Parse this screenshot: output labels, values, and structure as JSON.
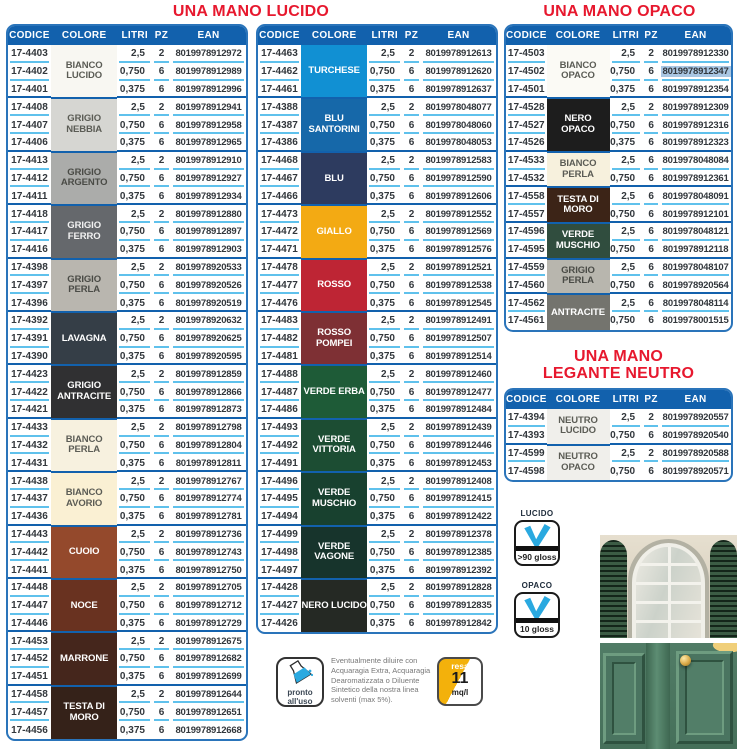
{
  "titles": {
    "lucido": "UNA MANO LUCIDO",
    "opaco": "UNA MANO OPACO",
    "legante_line1": "UNA MANO",
    "legante_line2": "LEGANTE NEUTRO"
  },
  "columns": [
    "CODICE",
    "COLORE",
    "LITRI",
    "PZ",
    "EAN"
  ],
  "colors": {
    "header_blue": "#1261ad",
    "line_cyan": "#5fc1ec",
    "title_red": "#e7182e",
    "ean_highlight": "#a9c6e2",
    "logo_blue": "#2aa9e0",
    "resa_yellow": "#f3b10b"
  },
  "tables": {
    "lucido_a": {
      "groups": [
        {
          "name": "BIANCO LUCIDO",
          "swatch": "#f8f7f2",
          "text": "#5b5c55",
          "rows": [
            [
              "17-4403",
              "2,5",
              "2",
              "8019978912972"
            ],
            [
              "17-4402",
              "0,750",
              "6",
              "8019978912989"
            ],
            [
              "17-4401",
              "0,375",
              "6",
              "8019978912996"
            ]
          ]
        },
        {
          "name": "GRIGIO NEBBIA",
          "swatch": "#d6d6d2",
          "text": "#5b5c55",
          "rows": [
            [
              "17-4408",
              "2,5",
              "2",
              "8019978912941"
            ],
            [
              "17-4407",
              "0,750",
              "6",
              "8019978912958"
            ],
            [
              "17-4406",
              "0,375",
              "6",
              "8019978912965"
            ]
          ]
        },
        {
          "name": "GRIGIO ARGENTO",
          "swatch": "#abacaa",
          "text": "#4a4b46",
          "rows": [
            [
              "17-4413",
              "2,5",
              "2",
              "8019978912910"
            ],
            [
              "17-4412",
              "0,750",
              "6",
              "8019978912927"
            ],
            [
              "17-4411",
              "0,375",
              "6",
              "8019978912934"
            ]
          ]
        },
        {
          "name": "GRIGIO FERRO",
          "swatch": "#65686c",
          "text": "#f2f2f2",
          "rows": [
            [
              "17-4418",
              "2,5",
              "2",
              "8019978912880"
            ],
            [
              "17-4417",
              "0,750",
              "6",
              "8019978912897"
            ],
            [
              "17-4416",
              "0,375",
              "6",
              "8019978912903"
            ]
          ]
        },
        {
          "name": "GRIGIO PERLA",
          "swatch": "#b9b6af",
          "text": "#4a4b46",
          "rows": [
            [
              "17-4398",
              "2,5",
              "2",
              "8019978920533"
            ],
            [
              "17-4397",
              "0,750",
              "6",
              "8019978920526"
            ],
            [
              "17-4396",
              "0,375",
              "6",
              "8019978920519"
            ]
          ]
        },
        {
          "name": "LAVAGNA",
          "swatch": "#353e47",
          "text": "#ffffff",
          "rows": [
            [
              "17-4392",
              "2,5",
              "2",
              "8019978920632"
            ],
            [
              "17-4391",
              "0,750",
              "6",
              "8019978920625"
            ],
            [
              "17-4390",
              "0,375",
              "6",
              "8019978920595"
            ]
          ]
        },
        {
          "name": "GRIGIO ANTRACITE",
          "swatch": "#303032",
          "text": "#ffffff",
          "rows": [
            [
              "17-4423",
              "2,5",
              "2",
              "8019978912859"
            ],
            [
              "17-4422",
              "0,750",
              "6",
              "8019978912866"
            ],
            [
              "17-4421",
              "0,375",
              "6",
              "8019978912873"
            ]
          ]
        },
        {
          "name": "BIANCO PERLA",
          "swatch": "#f7f1df",
          "text": "#5b5c55",
          "rows": [
            [
              "17-4433",
              "2,5",
              "2",
              "8019978912798"
            ],
            [
              "17-4432",
              "0,750",
              "6",
              "8019978912804"
            ],
            [
              "17-4431",
              "0,375",
              "6",
              "8019978912811"
            ]
          ]
        },
        {
          "name": "BIANCO AVORIO",
          "swatch": "#faf0d3",
          "text": "#5b5c55",
          "rows": [
            [
              "17-4438",
              "2,5",
              "2",
              "8019978912767"
            ],
            [
              "17-4437",
              "0,750",
              "6",
              "8019978912774"
            ],
            [
              "17-4436",
              "0,375",
              "6",
              "8019978912781"
            ]
          ]
        },
        {
          "name": "CUOIO",
          "swatch": "#94492c",
          "text": "#ffffff",
          "rows": [
            [
              "17-4443",
              "2,5",
              "2",
              "8019978912736"
            ],
            [
              "17-4442",
              "0,750",
              "6",
              "8019978912743"
            ],
            [
              "17-4441",
              "0,375",
              "6",
              "8019978912750"
            ]
          ]
        },
        {
          "name": "NOCE",
          "swatch": "#693220",
          "text": "#ffffff",
          "rows": [
            [
              "17-4448",
              "2,5",
              "2",
              "8019978912705"
            ],
            [
              "17-4447",
              "0,750",
              "6",
              "8019978912712"
            ],
            [
              "17-4446",
              "0,375",
              "6",
              "8019978912729"
            ]
          ]
        },
        {
          "name": "MARRONE",
          "swatch": "#45261c",
          "text": "#ffffff",
          "rows": [
            [
              "17-4453",
              "2,5",
              "2",
              "8019978912675"
            ],
            [
              "17-4452",
              "0,750",
              "6",
              "8019978912682"
            ],
            [
              "17-4451",
              "0,375",
              "6",
              "8019978912699"
            ]
          ]
        },
        {
          "name": "TESTA DI MORO",
          "swatch": "#352219",
          "text": "#ffffff",
          "rows": [
            [
              "17-4458",
              "2,5",
              "2",
              "8019978912644"
            ],
            [
              "17-4457",
              "0,750",
              "6",
              "8019978912651"
            ],
            [
              "17-4456",
              "0,375",
              "6",
              "8019978912668"
            ]
          ]
        }
      ]
    },
    "lucido_b": {
      "groups": [
        {
          "name": "TURCHESE",
          "swatch": "#1190d3",
          "text": "#ffffff",
          "rows": [
            [
              "17-4463",
              "2,5",
              "2",
              "8019978912613"
            ],
            [
              "17-4462",
              "0,750",
              "6",
              "8019978912620"
            ],
            [
              "17-4461",
              "0,375",
              "6",
              "8019978912637"
            ]
          ]
        },
        {
          "name": "BLU SANTORINI",
          "swatch": "#1668a9",
          "text": "#ffffff",
          "rows": [
            [
              "17-4388",
              "2,5",
              "2",
              "8019978048077"
            ],
            [
              "17-4387",
              "0,750",
              "6",
              "8019978048060"
            ],
            [
              "17-4386",
              "0,375",
              "6",
              "8019978048053"
            ]
          ]
        },
        {
          "name": "BLU",
          "swatch": "#2d3b5f",
          "text": "#ffffff",
          "rows": [
            [
              "17-4468",
              "2,5",
              "2",
              "8019978912583"
            ],
            [
              "17-4467",
              "0,750",
              "6",
              "8019978912590"
            ],
            [
              "17-4466",
              "0,375",
              "6",
              "8019978912606"
            ]
          ]
        },
        {
          "name": "GIALLO",
          "swatch": "#f3aa13",
          "text": "#ffffff",
          "rows": [
            [
              "17-4473",
              "2,5",
              "2",
              "8019978912552"
            ],
            [
              "17-4472",
              "0,750",
              "6",
              "8019978912569"
            ],
            [
              "17-4471",
              "0,375",
              "6",
              "8019978912576"
            ]
          ]
        },
        {
          "name": "ROSSO",
          "swatch": "#be2534",
          "text": "#ffffff",
          "rows": [
            [
              "17-4478",
              "2,5",
              "2",
              "8019978912521"
            ],
            [
              "17-4477",
              "0,750",
              "6",
              "8019978912538"
            ],
            [
              "17-4476",
              "0,375",
              "6",
              "8019978912545"
            ]
          ]
        },
        {
          "name": "ROSSO POMPEI",
          "swatch": "#7e3034",
          "text": "#ffffff",
          "rows": [
            [
              "17-4483",
              "2,5",
              "2",
              "8019978912491"
            ],
            [
              "17-4482",
              "0,750",
              "6",
              "8019978912507"
            ],
            [
              "17-4481",
              "0,375",
              "6",
              "8019978912514"
            ]
          ]
        },
        {
          "name": "VERDE ERBA",
          "swatch": "#1e5b37",
          "text": "#ffffff",
          "rows": [
            [
              "17-4488",
              "2,5",
              "2",
              "8019978912460"
            ],
            [
              "17-4487",
              "0,750",
              "6",
              "8019978912477"
            ],
            [
              "17-4486",
              "0,375",
              "6",
              "8019978912484"
            ]
          ]
        },
        {
          "name": "VERDE VITTORIA",
          "swatch": "#1c4d33",
          "text": "#ffffff",
          "rows": [
            [
              "17-4493",
              "2,5",
              "2",
              "8019978912439"
            ],
            [
              "17-4492",
              "0,750",
              "6",
              "8019978912446"
            ],
            [
              "17-4491",
              "0,375",
              "6",
              "8019978912453"
            ]
          ]
        },
        {
          "name": "VERDE MUSCHIO",
          "swatch": "#18412f",
          "text": "#ffffff",
          "rows": [
            [
              "17-4496",
              "2,5",
              "2",
              "8019978912408"
            ],
            [
              "17-4495",
              "0,750",
              "6",
              "8019978912415"
            ],
            [
              "17-4494",
              "0,375",
              "6",
              "8019978912422"
            ]
          ]
        },
        {
          "name": "VERDE VAGONE",
          "swatch": "#17342c",
          "text": "#ffffff",
          "rows": [
            [
              "17-4499",
              "2,5",
              "2",
              "8019978912378"
            ],
            [
              "17-4498",
              "0,750",
              "6",
              "8019978912385"
            ],
            [
              "17-4497",
              "0,375",
              "6",
              "8019978912392"
            ]
          ]
        },
        {
          "name": "NERO LUCIDO",
          "swatch": "#252924",
          "text": "#ffffff",
          "rows": [
            [
              "17-4428",
              "2,5",
              "2",
              "8019978912828"
            ],
            [
              "17-4427",
              "0,750",
              "6",
              "8019978912835"
            ],
            [
              "17-4426",
              "0,375",
              "6",
              "8019978912842"
            ]
          ]
        }
      ]
    },
    "opaco": {
      "groups": [
        {
          "name": "BIANCO OPACO",
          "swatch": "#fbfaf5",
          "text": "#5b5c55",
          "rows": [
            [
              "17-4503",
              "2,5",
              "2",
              "8019978912330"
            ],
            [
              "17-4502",
              "0,750",
              "6",
              "8019978912347",
              "hl"
            ],
            [
              "17-4501",
              "0,375",
              "6",
              "8019978912354"
            ]
          ]
        },
        {
          "name": "NERO OPACO",
          "swatch": "#1d1d1d",
          "text": "#ffffff",
          "rows": [
            [
              "17-4528",
              "2,5",
              "2",
              "8019978912309"
            ],
            [
              "17-4527",
              "0,750",
              "6",
              "8019978912316"
            ],
            [
              "17-4526",
              "0,375",
              "6",
              "8019978912323"
            ]
          ]
        },
        {
          "name": "BIANCO PERLA",
          "swatch": "#f7f1dd",
          "text": "#5b5c55",
          "rows": [
            [
              "17-4533",
              "2,5",
              "6",
              "8019978048084"
            ],
            [
              "17-4532",
              "0,750",
              "6",
              "8019978912361"
            ]
          ]
        },
        {
          "name": "TESTA DI MORO",
          "swatch": "#3c2417",
          "text": "#ffffff",
          "rows": [
            [
              "17-4558",
              "2,5",
              "6",
              "8019978048091"
            ],
            [
              "17-4557",
              "0,750",
              "6",
              "8019978912101"
            ]
          ]
        },
        {
          "name": "VERDE MUSCHIO",
          "swatch": "#304d3e",
          "text": "#ffffff",
          "rows": [
            [
              "17-4596",
              "2,5",
              "6",
              "8019978048121"
            ],
            [
              "17-4595",
              "0,750",
              "6",
              "8019978912118"
            ]
          ]
        },
        {
          "name": "GRIGIO PERLA",
          "swatch": "#b8b6ae",
          "text": "#4a4b46",
          "rows": [
            [
              "17-4559",
              "2,5",
              "6",
              "8019978048107"
            ],
            [
              "17-4560",
              "0,750",
              "6",
              "8019978920564"
            ]
          ]
        },
        {
          "name": "ANTRACITE",
          "swatch": "#74746e",
          "text": "#ffffff",
          "rows": [
            [
              "17-4562",
              "2,5",
              "6",
              "8019978048114"
            ],
            [
              "17-4561",
              "0,750",
              "6",
              "8019978001515"
            ]
          ]
        }
      ]
    },
    "legante": {
      "groups": [
        {
          "name": "NEUTRO LUCIDO",
          "swatch": "#f0efeb",
          "text": "#5b5c55",
          "rows": [
            [
              "17-4394",
              "2,5",
              "2",
              "8019978920557"
            ],
            [
              "17-4393",
              "0,750",
              "6",
              "8019978920540"
            ]
          ]
        },
        {
          "name": "NEUTRO OPACO",
          "swatch": "#f0efeb",
          "text": "#5b5c55",
          "rows": [
            [
              "17-4599",
              "2,5",
              "2",
              "8019978920588"
            ],
            [
              "17-4598",
              "0,750",
              "6",
              "8019978920571"
            ]
          ]
        }
      ]
    }
  },
  "badges": {
    "lucido": {
      "label": "LUCIDO",
      "gloss": ">90 gloss"
    },
    "opaco": {
      "label": "OPACO",
      "gloss": "10 gloss"
    },
    "pronto": {
      "label": "pronto all'uso"
    },
    "resa": {
      "word": "resa",
      "value": "11",
      "unit": "mq/l"
    }
  },
  "note": "Eventualmente diluire con Acquaragia Extra, Acquaragia Dearomatizzata o Diluente Sintetico della nostra linea solventi (max 5%)."
}
